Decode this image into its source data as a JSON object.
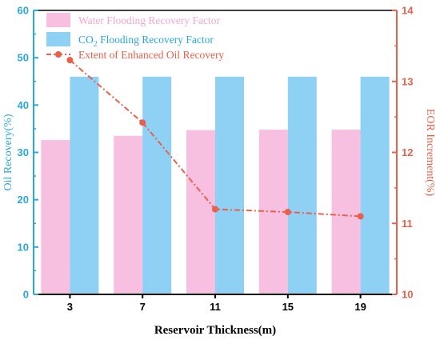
{
  "chart_data": {
    "type": "bar",
    "categories": [
      "3",
      "7",
      "11",
      "15",
      "19"
    ],
    "series": [
      {
        "name": "Water Flooding Recovery Factor",
        "axis": "left",
        "kind": "bar",
        "values": [
          32.6,
          33.5,
          34.7,
          34.8,
          34.8
        ],
        "color": "#f7bfe0"
      },
      {
        "name": "CO₂ Flooding Recovery Factor",
        "name_main": "CO",
        "name_sub": "2",
        "name_rest": " Flooding Recovery Factor",
        "axis": "right_bar",
        "kind": "bar",
        "values": [
          46.0,
          46.0,
          46.0,
          46.0,
          46.0
        ],
        "color": "#8fd0f5"
      },
      {
        "name": "Extent of Enhanced Oil Recovery",
        "axis": "right",
        "kind": "line",
        "values": [
          13.3,
          12.42,
          11.2,
          11.16,
          11.1
        ],
        "color": "#e8604a"
      }
    ],
    "xlabel": "Reservoir Thickness(m)",
    "ylabel_left": "Oil Recovery(%)",
    "ylabel_right": "EOR Increment(%)",
    "ylim_left": [
      0,
      60
    ],
    "yticks_left": [
      0,
      10,
      20,
      30,
      40,
      50,
      60
    ],
    "ylim_right": [
      10,
      14
    ],
    "yticks_right": [
      10,
      11,
      12,
      13,
      14
    ],
    "left_axis_color": "#2aa7e0",
    "right_axis_color": "#e8604a",
    "legend_position": "top-left",
    "grid": false
  }
}
